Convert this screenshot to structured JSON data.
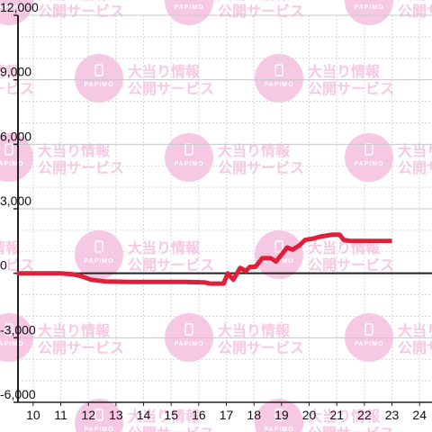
{
  "watermark": {
    "line1": "大当り情報",
    "line2": "公開サービス",
    "logo_text": "PAPIMO",
    "color": "#f7c8e3"
  },
  "colors": {
    "series": "#e0203a",
    "axis": "#222222",
    "grid_major": "#c8c8c8",
    "grid_minor": "#d8d8d8",
    "tick_label": "#111111"
  },
  "chart_data": {
    "type": "line",
    "title": "",
    "xlabel": "",
    "ylabel": "",
    "xlim": [
      9.45,
      24.45
    ],
    "ylim": [
      -6000,
      12000
    ],
    "x_ticks": [
      10,
      11,
      12,
      13,
      14,
      15,
      16,
      17,
      18,
      19,
      20,
      21,
      22,
      23,
      24
    ],
    "y_ticks": [
      -6000,
      -3000,
      0,
      3000,
      6000,
      9000,
      12000
    ],
    "y_tick_labels": [
      "-6,000",
      "-3,000",
      "0",
      "3,000",
      "6,000",
      "9,000",
      "12,000"
    ],
    "grid": true,
    "series": [
      {
        "points": [
          [
            9.4,
            0
          ],
          [
            11.0,
            0
          ],
          [
            11.4,
            -40
          ],
          [
            11.7,
            -120
          ],
          [
            12.1,
            -300
          ],
          [
            12.6,
            -380
          ],
          [
            13.5,
            -400
          ],
          [
            14.5,
            -400
          ],
          [
            15.5,
            -400
          ],
          [
            16.2,
            -420
          ],
          [
            16.4,
            -480
          ],
          [
            16.9,
            -480
          ],
          [
            17.05,
            0
          ],
          [
            17.25,
            -300
          ],
          [
            17.5,
            250
          ],
          [
            17.7,
            100
          ],
          [
            17.85,
            300
          ],
          [
            18.05,
            300
          ],
          [
            18.3,
            700
          ],
          [
            18.6,
            700
          ],
          [
            18.8,
            550
          ],
          [
            19.05,
            950
          ],
          [
            19.2,
            1200
          ],
          [
            19.4,
            1100
          ],
          [
            19.65,
            1300
          ],
          [
            19.85,
            1550
          ],
          [
            20.1,
            1600
          ],
          [
            20.45,
            1720
          ],
          [
            20.85,
            1800
          ],
          [
            21.1,
            1800
          ],
          [
            21.25,
            1550
          ],
          [
            21.5,
            1500
          ],
          [
            23.0,
            1500
          ]
        ]
      }
    ]
  }
}
